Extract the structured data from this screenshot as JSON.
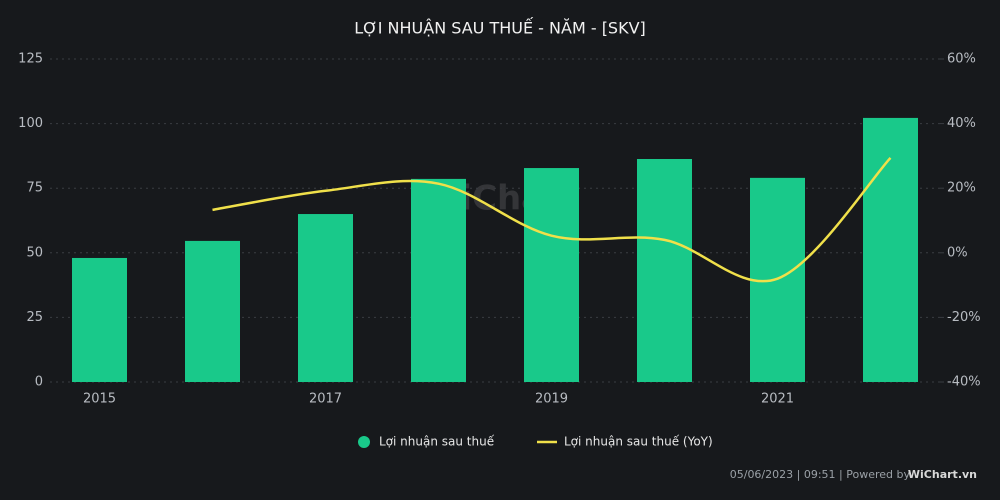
{
  "chart_data": {
    "type": "bar",
    "title": "LỢI NHUẬN SAU THUẾ - NĂM - [SKV]",
    "categories": [
      "2015",
      null,
      "2017",
      null,
      "2019",
      null,
      "2021",
      null
    ],
    "series": [
      {
        "name": "Lợi nhuận sau thuế",
        "type": "bar",
        "color": "#19c98a",
        "values": [
          48,
          54.6,
          65,
          78.6,
          82.8,
          86.3,
          79,
          102.2
        ]
      },
      {
        "name": "Lợi nhuận sau thuế (YoY)",
        "type": "line",
        "axis": "y2",
        "color": "#f0e04a",
        "values": [
          null,
          13.3,
          19.2,
          21.4,
          5.3,
          4.0,
          -8.0,
          29.4
        ]
      }
    ],
    "ylim": [
      0,
      125
    ],
    "yticks": [
      0,
      25,
      50,
      75,
      100,
      125
    ],
    "y2lim": [
      -40,
      60
    ],
    "y2ticks": [
      {
        "value": -40,
        "label": "-40%"
      },
      {
        "value": -20,
        "label": "-20%"
      },
      {
        "value": 0,
        "label": "0%"
      },
      {
        "value": 20,
        "label": "20%"
      },
      {
        "value": 40,
        "label": "40%"
      },
      {
        "value": 60,
        "label": "60%"
      }
    ],
    "grid": true,
    "legend": "bottom",
    "watermark": "WiChart",
    "footer": "05/06/2023 | 09:51 | Powered by",
    "footer_brand": "WiChart.vn"
  }
}
